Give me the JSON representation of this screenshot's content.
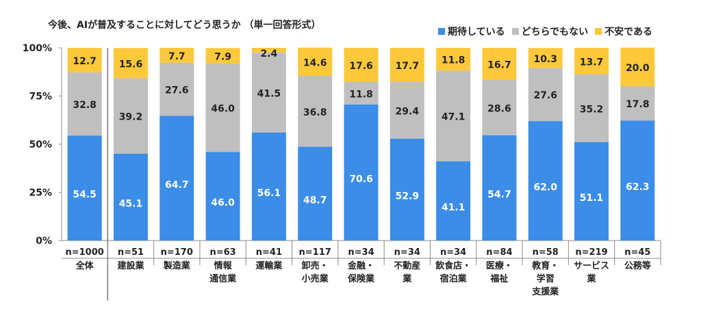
{
  "chart_data": {
    "type": "bar",
    "stacked": true,
    "title": "今後、AIが普及することに対してどう思うか （単一回答形式）",
    "xlabel": "",
    "ylabel": "",
    "ylim": [
      0,
      100
    ],
    "yticks": [
      "0%",
      "25%",
      "50%",
      "75%",
      "100%"
    ],
    "grid": false,
    "legend_position": "top-right",
    "categories": [
      {
        "n": "n=1000",
        "label": [
          "全体"
        ]
      },
      {
        "n": "n=51",
        "label": [
          "建設業"
        ]
      },
      {
        "n": "n=170",
        "label": [
          "製造業"
        ]
      },
      {
        "n": "n=63",
        "label": [
          "情報",
          "通信業"
        ]
      },
      {
        "n": "n=41",
        "label": [
          "運輸業"
        ]
      },
      {
        "n": "n=117",
        "label": [
          "卸売・",
          "小売業"
        ]
      },
      {
        "n": "n=34",
        "label": [
          "金融・",
          "保険業"
        ]
      },
      {
        "n": "n=34",
        "label": [
          "不動産",
          "業"
        ]
      },
      {
        "n": "n=34",
        "label": [
          "飲食店・",
          "宿泊業"
        ]
      },
      {
        "n": "n=84",
        "label": [
          "医療・",
          "福祉"
        ]
      },
      {
        "n": "n=58",
        "label": [
          "教育・",
          "学習",
          "支援業"
        ]
      },
      {
        "n": "n=219",
        "label": [
          "サービス",
          "業"
        ]
      },
      {
        "n": "n=45",
        "label": [
          "公務等"
        ]
      }
    ],
    "series": [
      {
        "name": "期待している",
        "color": "#3b8de8",
        "label_color": "#ffffff",
        "values": [
          54.5,
          45.1,
          64.7,
          46.0,
          56.1,
          48.7,
          70.6,
          52.9,
          41.1,
          54.7,
          62.0,
          51.1,
          62.3
        ]
      },
      {
        "name": "どちらでもない",
        "color": "#bfbfbf",
        "label_color": "#222222",
        "values": [
          32.8,
          39.2,
          27.6,
          46.0,
          41.5,
          36.8,
          11.8,
          29.4,
          47.1,
          28.6,
          27.6,
          35.2,
          17.8
        ]
      },
      {
        "name": "不安である",
        "color": "#fdc83a",
        "label_color": "#222222",
        "values": [
          12.7,
          15.6,
          7.7,
          7.9,
          2.4,
          14.6,
          17.6,
          17.7,
          11.8,
          16.7,
          10.3,
          13.7,
          20.0
        ]
      }
    ]
  }
}
